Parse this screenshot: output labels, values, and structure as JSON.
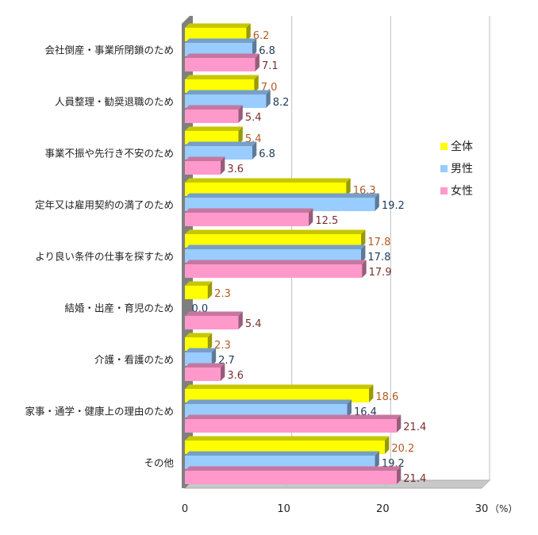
{
  "chart_data": {
    "type": "bar",
    "orientation": "horizontal",
    "categories": [
      "会社倒産・事業所閉鎖のため",
      "人員整理・勧奨退職のため",
      "事業不振や先行き不安のため",
      "定年又は雇用契約の満了のため",
      "より良い条件の仕事を探すため",
      "結婚・出産・育児のため",
      "介護・看護のため",
      "家事・通学・健康上の理由のため",
      "その他"
    ],
    "series": [
      {
        "name": "全体",
        "color": "#ffff00",
        "label_color": "#b35a1f",
        "values": [
          6.2,
          7.0,
          5.4,
          16.3,
          17.8,
          2.3,
          2.3,
          18.6,
          20.2
        ],
        "value_labels": [
          "6.2",
          "7.0",
          "5.4",
          "16.3",
          "17.8",
          "2.3",
          "2.3",
          "18.6",
          "20.2"
        ]
      },
      {
        "name": "男性",
        "color": "#99ccff",
        "label_color": "#1f3a5a",
        "values": [
          6.8,
          8.2,
          6.8,
          19.2,
          17.8,
          0.0,
          2.7,
          16.4,
          19.2
        ],
        "value_labels": [
          "6.8",
          "8.2",
          "6.8",
          "19.2",
          "17.8",
          "0.0",
          "2.7",
          "16.4",
          "19.2"
        ]
      },
      {
        "name": "女性",
        "color": "#ff99cc",
        "label_color": "#7a2e2e",
        "values": [
          7.1,
          5.4,
          3.6,
          12.5,
          17.9,
          5.4,
          3.6,
          21.4,
          21.4
        ],
        "value_labels": [
          "7.1",
          "5.4",
          "3.6",
          "12.5",
          "17.9",
          "5.4",
          "3.6",
          "21.4",
          "21.4"
        ]
      }
    ],
    "xlim": [
      0,
      30
    ],
    "x_ticks": [
      "0",
      "10",
      "20",
      "30"
    ],
    "x_unit": "（%）",
    "grid": true,
    "legend_position": "right"
  }
}
